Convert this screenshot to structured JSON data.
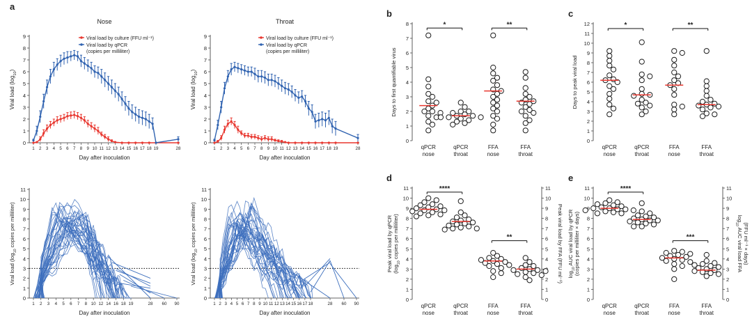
{
  "panel_labels": {
    "a": "a",
    "b": "b",
    "c": "c",
    "d": "d",
    "e": "e"
  },
  "titles": {
    "nose": "Nose",
    "throat": "Throat"
  },
  "colors": {
    "culture": "#e8372f",
    "qpcr": "#2f62b0",
    "indiv": "#3d6fbd",
    "median": "#e8372f",
    "marker_stroke": "#1a1a1a"
  },
  "chart_data": [
    {
      "id": "a_nose_top",
      "type": "line",
      "title": "Nose",
      "xlabel": "Day after inoculation",
      "ylabel": "Viral load (log10)",
      "ylim": [
        0,
        9
      ],
      "yticks": [
        0,
        1,
        2,
        3,
        4,
        5,
        6,
        7,
        8,
        9
      ],
      "xticklabels": [
        "1",
        "2",
        "3",
        "4",
        "5",
        "6",
        "7",
        "8",
        "9",
        "10",
        "11",
        "12",
        "13",
        "14",
        "15",
        "16",
        "17",
        "18",
        "19",
        "28"
      ],
      "legend": [
        "Viral load by culture (FFU ml⁻¹)",
        "Viral load by qPCR",
        "(copies per milliliter)"
      ],
      "series": [
        {
          "name": "Viral load by culture (FFU ml⁻¹)",
          "color": "#e8372f",
          "x": [
            1,
            1.5,
            2,
            2.5,
            3,
            3.5,
            4,
            4.5,
            5,
            5.5,
            6,
            6.5,
            7,
            7.5,
            8,
            8.5,
            9,
            9.5,
            10,
            10.5,
            11,
            11.5,
            12,
            12.5,
            13,
            14,
            15,
            16,
            17,
            18,
            19,
            28
          ],
          "y": [
            0,
            0.05,
            0.3,
            0.8,
            1.2,
            1.5,
            1.7,
            1.9,
            2.0,
            2.1,
            2.25,
            2.3,
            2.35,
            2.25,
            2.1,
            1.9,
            1.6,
            1.4,
            1.2,
            1.0,
            0.7,
            0.5,
            0.3,
            0.15,
            0.05,
            0,
            0,
            0,
            0,
            0,
            0,
            0
          ],
          "err": [
            0,
            0,
            0.2,
            0.3,
            0.3,
            0.3,
            0.3,
            0.3,
            0.3,
            0.3,
            0.3,
            0.3,
            0.3,
            0.3,
            0.3,
            0.3,
            0.3,
            0.3,
            0.3,
            0.3,
            0.2,
            0.2,
            0.2,
            0.1,
            0.05,
            0,
            0,
            0,
            0,
            0,
            0,
            0
          ]
        },
        {
          "name": "Viral load by qPCR (copies per milliliter)",
          "color": "#2f62b0",
          "x": [
            1,
            1.5,
            2,
            2.5,
            3,
            3.5,
            4,
            4.5,
            5,
            5.5,
            6,
            6.5,
            7,
            7.5,
            8,
            8.5,
            9,
            9.5,
            10,
            10.5,
            11,
            11.5,
            12,
            12.5,
            13,
            13.5,
            14,
            14.5,
            15,
            15.5,
            16,
            16.5,
            17,
            17.5,
            18,
            18.5,
            19,
            28
          ],
          "y": [
            0.2,
            1.0,
            2.2,
            3.5,
            4.7,
            5.6,
            6.2,
            6.6,
            6.9,
            7.1,
            7.2,
            7.3,
            7.4,
            7.3,
            6.9,
            6.7,
            6.5,
            6.3,
            6.0,
            5.9,
            5.6,
            5.3,
            5.0,
            4.7,
            4.4,
            4.1,
            3.7,
            3.3,
            2.9,
            2.6,
            2.4,
            2.2,
            2.1,
            2.0,
            1.8,
            1.6,
            0,
            0.3
          ],
          "err": [
            0.1,
            0.4,
            0.5,
            0.6,
            0.6,
            0.6,
            0.6,
            0.5,
            0.5,
            0.5,
            0.5,
            0.4,
            0.4,
            0.4,
            0.5,
            0.5,
            0.5,
            0.5,
            0.5,
            0.5,
            0.6,
            0.6,
            0.6,
            0.6,
            0.6,
            0.6,
            0.6,
            0.6,
            0.6,
            0.6,
            0.6,
            0.6,
            0.6,
            0.6,
            0.6,
            0.5,
            0,
            0.2
          ]
        }
      ]
    },
    {
      "id": "a_throat_top",
      "type": "line",
      "title": "Throat",
      "xlabel": "Day after inoculation",
      "ylabel": "Viral load (log10)",
      "ylim": [
        0,
        9
      ],
      "yticks": [
        0,
        1,
        2,
        3,
        4,
        5,
        6,
        7,
        8,
        9
      ],
      "xticklabels": [
        "1",
        "2",
        "3",
        "4",
        "5",
        "6",
        "7",
        "8",
        "9",
        "10",
        "11",
        "12",
        "13",
        "14",
        "15",
        "16",
        "17",
        "18",
        "19",
        "28"
      ],
      "legend": [
        "Viral load by culture (FFU ml⁻¹)",
        "Viral load by qPCR",
        "(copies per milliliter)"
      ],
      "series": [
        {
          "name": "Viral load by culture (FFU ml⁻¹)",
          "color": "#e8372f",
          "x": [
            1,
            1.5,
            2,
            2.5,
            3,
            3.5,
            4,
            4.5,
            5,
            5.5,
            6,
            6.5,
            7,
            7.5,
            8,
            8.5,
            9,
            9.5,
            10,
            10.5,
            11,
            11.5,
            12,
            13,
            14,
            15,
            16,
            17,
            18,
            19,
            28
          ],
          "y": [
            0,
            0.1,
            0.4,
            1.1,
            1.6,
            1.8,
            1.5,
            1.1,
            0.8,
            0.6,
            0.6,
            0.5,
            0.5,
            0.4,
            0.3,
            0.4,
            0.3,
            0.3,
            0.2,
            0.15,
            0.1,
            0.05,
            0,
            0,
            0,
            0,
            0,
            0,
            0,
            0,
            0
          ],
          "err": [
            0,
            0.1,
            0.2,
            0.3,
            0.3,
            0.3,
            0.3,
            0.3,
            0.2,
            0.2,
            0.2,
            0.2,
            0.2,
            0.2,
            0.2,
            0.2,
            0.2,
            0.2,
            0.1,
            0.1,
            0.1,
            0,
            0,
            0,
            0,
            0,
            0,
            0,
            0,
            0,
            0
          ]
        },
        {
          "name": "Viral load by qPCR (copies per milliliter)",
          "color": "#2f62b0",
          "x": [
            1,
            1.5,
            2,
            2.5,
            3,
            3.5,
            4,
            4.5,
            5,
            5.5,
            6,
            6.5,
            7,
            7.5,
            8,
            8.5,
            9,
            9.5,
            10,
            10.5,
            11,
            11.5,
            12,
            12.5,
            13,
            13.5,
            14,
            14.5,
            15,
            15.5,
            16,
            16.5,
            17,
            17.5,
            18,
            18.5,
            19,
            28
          ],
          "y": [
            0.2,
            1.5,
            3.0,
            4.6,
            5.6,
            6.2,
            6.4,
            6.3,
            6.2,
            6.1,
            6.0,
            6.0,
            5.8,
            5.6,
            5.6,
            5.5,
            5.3,
            5.3,
            5.2,
            5.0,
            4.8,
            4.6,
            4.5,
            4.3,
            4.0,
            3.8,
            3.9,
            3.5,
            2.9,
            2.6,
            1.8,
            1.9,
            2.0,
            1.9,
            2.1,
            1.4,
            1.2,
            0.4
          ],
          "err": [
            0.1,
            0.4,
            0.5,
            0.5,
            0.5,
            0.5,
            0.4,
            0.4,
            0.4,
            0.4,
            0.4,
            0.4,
            0.5,
            0.5,
            0.5,
            0.5,
            0.5,
            0.5,
            0.5,
            0.5,
            0.5,
            0.5,
            0.5,
            0.5,
            0.5,
            0.5,
            0.5,
            0.5,
            0.6,
            0.6,
            0.6,
            0.6,
            0.6,
            0.6,
            0.6,
            0.6,
            0.6,
            0.3
          ]
        }
      ]
    },
    {
      "id": "a_nose_bottom",
      "type": "line",
      "xlabel": "Day after inoculation",
      "ylabel": "Viral load (log10 copies per milliliter)",
      "ylim": [
        0,
        11
      ],
      "yticks": [
        0,
        1,
        2,
        3,
        4,
        5,
        6,
        7,
        8,
        9,
        10,
        11
      ],
      "xticklabels": [
        "1",
        "2",
        "3",
        "4",
        "5",
        "6",
        "7",
        "8",
        "10",
        "12",
        "14",
        "16",
        "18",
        "19",
        "28",
        "60",
        "90"
      ],
      "detection_limit": 3
    },
    {
      "id": "a_throat_bottom",
      "type": "line",
      "xlabel": "Day after inoculation",
      "ylabel": "Viral load (log10 copies per milliliter)",
      "ylim": [
        0,
        11
      ],
      "yticks": [
        0,
        1,
        2,
        3,
        4,
        5,
        6,
        7,
        8,
        9,
        10,
        11
      ],
      "xticklabels": [
        "1",
        "2",
        "3",
        "4",
        "5",
        "6",
        "7",
        "8",
        "9",
        "10",
        "11",
        "12",
        "13",
        "14",
        "15",
        "16",
        "17",
        "18",
        "28",
        "60",
        "90"
      ],
      "detection_limit": 3
    },
    {
      "id": "b",
      "type": "scatter",
      "ylabel": "Days to first quantifiable virus",
      "ylim": [
        0,
        8
      ],
      "yticks": [
        0,
        1,
        2,
        3,
        4,
        5,
        6,
        7,
        8
      ],
      "categories": [
        "qPCR nose",
        "qPCR throat",
        "FFA nose",
        "FFA throat"
      ],
      "points": [
        [
          7.2,
          4.2,
          3.7,
          3.2,
          3.0,
          2.7,
          2.6,
          2.4,
          2.2,
          2.0,
          2.0,
          1.9,
          1.7,
          1.6,
          1.3,
          1.1,
          0.7
        ],
        [
          2.6,
          2.3,
          2.0,
          2.0,
          1.9,
          1.8,
          1.7,
          1.7,
          1.6,
          1.6,
          1.6,
          1.5,
          1.4,
          1.3,
          1.2,
          1.1
        ],
        [
          7.2,
          5.0,
          4.6,
          4.3,
          4.1,
          3.8,
          3.5,
          3.4,
          3.2,
          3.0,
          2.8,
          2.6,
          2.4,
          2.2,
          2.0,
          1.7,
          1.5,
          1.1,
          0.7
        ],
        [
          4.7,
          4.3,
          3.6,
          3.2,
          3.0,
          2.8,
          2.7,
          2.6,
          2.5,
          2.3,
          2.1,
          2.0,
          1.9,
          1.7,
          1.4,
          1.2,
          0.7
        ]
      ],
      "medians": [
        2.4,
        1.7,
        3.4,
        2.7
      ],
      "brackets": [
        {
          "from": 0,
          "to": 1,
          "y": 7.7,
          "label": "*"
        },
        {
          "from": 2,
          "to": 3,
          "y": 7.7,
          "label": "**"
        }
      ]
    },
    {
      "id": "c",
      "type": "scatter",
      "ylabel": "Days to peak viral load",
      "ylim": [
        0,
        12
      ],
      "yticks": [
        0,
        1,
        2,
        3,
        4,
        5,
        6,
        7,
        8,
        9,
        10,
        11,
        12
      ],
      "categories": [
        "qPCR nose",
        "qPCR throat",
        "FFA nose",
        "FFA throat"
      ],
      "points": [
        [
          9.2,
          8.7,
          8.2,
          7.7,
          7.3,
          6.7,
          6.3,
          6.2,
          6.0,
          5.6,
          5.3,
          4.8,
          4.3,
          3.7,
          3.3,
          2.7
        ],
        [
          10.1,
          8.1,
          6.8,
          6.6,
          6.2,
          5.3,
          4.8,
          4.7,
          4.6,
          4.2,
          3.9,
          3.8,
          3.6,
          3.4,
          3.0,
          2.7
        ],
        [
          9.2,
          9.0,
          8.3,
          7.7,
          7.0,
          6.6,
          6.2,
          5.9,
          5.7,
          5.3,
          4.7,
          3.7,
          3.5,
          3.2,
          2.7
        ],
        [
          9.2,
          6.1,
          5.6,
          5.1,
          4.6,
          4.2,
          4.0,
          3.8,
          3.7,
          3.6,
          3.5,
          3.4,
          3.2,
          2.8,
          2.7,
          2.5
        ]
      ],
      "medians": [
        6.2,
        4.7,
        5.7,
        3.7
      ],
      "brackets": [
        {
          "from": 0,
          "to": 1,
          "y": 11.5,
          "label": "*"
        },
        {
          "from": 2,
          "to": 3,
          "y": 11.5,
          "label": "**"
        }
      ]
    },
    {
      "id": "d",
      "type": "scatter",
      "ylabel": "Peak viral load by qPCR (log10 copies per milliliter)",
      "ylabel_right": "Peak viral load by FFA (FFU ml⁻¹)",
      "ylim": [
        0,
        11
      ],
      "yticks": [
        0,
        1,
        2,
        3,
        4,
        5,
        6,
        7,
        8,
        9,
        10,
        11
      ],
      "categories": [
        "qPCR nose",
        "qPCR throat",
        "FFA nose",
        "FFA throat"
      ],
      "points": [
        [
          10.0,
          9.8,
          9.6,
          9.4,
          9.3,
          9.2,
          9.1,
          9.0,
          8.9,
          8.8,
          8.8,
          8.7,
          8.6,
          8.5,
          8.4,
          8.3,
          8.2
        ],
        [
          9.7,
          8.6,
          8.3,
          8.1,
          7.9,
          7.8,
          7.7,
          7.6,
          7.5,
          7.4,
          7.3,
          7.2,
          7.1,
          7.0,
          6.9,
          7.0
        ],
        [
          4.6,
          4.3,
          4.1,
          4.0,
          3.9,
          3.8,
          3.7,
          3.6,
          3.5,
          3.4,
          3.3,
          3.1,
          2.8,
          2.6,
          2.2
        ],
        [
          4.1,
          3.7,
          3.4,
          3.3,
          3.1,
          3.0,
          2.9,
          2.9,
          2.8,
          2.7,
          2.6,
          2.5,
          2.4,
          2.2,
          1.9
        ]
      ],
      "medians": [
        8.9,
        7.7,
        3.8,
        3.0
      ],
      "brackets": [
        {
          "from": 0,
          "to": 1,
          "y": 10.6,
          "label": "****"
        },
        {
          "from": 2,
          "to": 3,
          "y": 5.8,
          "label": "**"
        }
      ]
    },
    {
      "id": "e",
      "type": "scatter",
      "ylabel": "log10 AUC viral load by qPCR (copies per milliliter × days)",
      "ylabel_right": "log10 AUC viral load FFA (FFU ml⁻¹ × days)",
      "ylim": [
        0,
        11
      ],
      "yticks": [
        0,
        1,
        2,
        3,
        4,
        5,
        6,
        7,
        8,
        9,
        10,
        11
      ],
      "categories": [
        "qPCR nose",
        "qPCR throat",
        "FFA nose",
        "FFA throat"
      ],
      "points": [
        [
          9.8,
          9.6,
          9.5,
          9.4,
          9.3,
          9.2,
          9.1,
          9.0,
          9.0,
          8.9,
          8.9,
          8.8,
          8.8,
          8.7,
          8.6,
          8.5,
          8.5
        ],
        [
          9.5,
          8.7,
          8.5,
          8.3,
          8.2,
          8.1,
          8.0,
          7.9,
          7.8,
          7.8,
          7.7,
          7.6,
          7.5,
          7.4,
          7.2,
          7.2
        ],
        [
          4.8,
          4.7,
          4.6,
          4.5,
          4.4,
          4.3,
          4.2,
          4.1,
          4.0,
          3.9,
          3.8,
          3.7,
          3.5,
          3.3,
          3.0,
          2.0
        ],
        [
          4.4,
          3.8,
          3.6,
          3.5,
          3.4,
          3.3,
          3.2,
          3.1,
          3.0,
          2.9,
          2.8,
          2.7,
          2.6,
          2.5,
          2.3
        ]
      ],
      "medians": [
        9.0,
        7.9,
        4.1,
        2.9
      ],
      "brackets": [
        {
          "from": 0,
          "to": 1,
          "y": 10.6,
          "label": "****"
        },
        {
          "from": 2,
          "to": 3,
          "y": 5.8,
          "label": "***"
        }
      ]
    }
  ]
}
